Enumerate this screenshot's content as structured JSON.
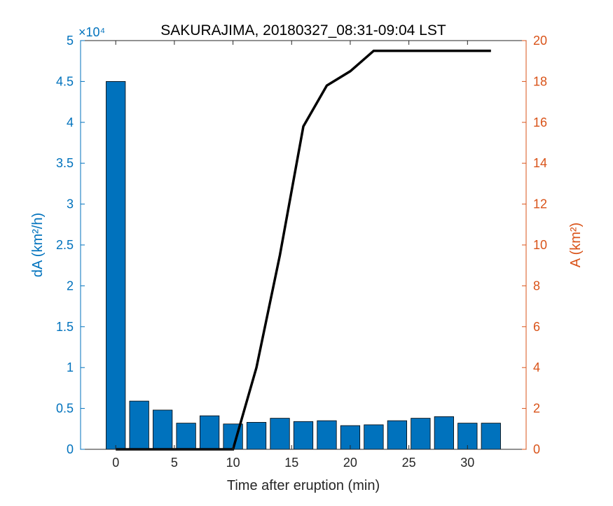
{
  "chart_data": {
    "type": "bar",
    "title": "SAKURAJIMA, 20180327_08:31-09:04 LST",
    "xlabel": "Time after eruption (min)",
    "ylabel_left": "dA (km²/h)",
    "ylabel_right": "A (km²)",
    "xlim": [
      -3,
      35
    ],
    "ylim_left": [
      0,
      50000
    ],
    "ylim_right": [
      0,
      20
    ],
    "left_exponent_label": "×10⁴",
    "x_ticks": [
      "0",
      "5",
      "10",
      "15",
      "20",
      "25",
      "30"
    ],
    "y_left_ticks": [
      "0",
      "0.5",
      "1",
      "1.5",
      "2",
      "2.5",
      "3",
      "3.5",
      "4",
      "4.5",
      "5"
    ],
    "y_right_ticks": [
      "0",
      "2",
      "4",
      "6",
      "8",
      "10",
      "12",
      "14",
      "16",
      "18",
      "20"
    ],
    "bars": {
      "x": [
        0,
        2,
        4,
        6,
        8,
        10,
        12,
        14,
        16,
        18,
        20,
        22,
        24,
        26,
        28,
        30,
        32
      ],
      "values": [
        45000,
        5900,
        4800,
        3200,
        4100,
        3100,
        3300,
        3800,
        3400,
        3500,
        2900,
        3000,
        3500,
        3800,
        4000,
        3200,
        3200
      ],
      "color": "#0072BD"
    },
    "line": {
      "x": [
        0,
        10,
        12,
        14,
        16,
        18,
        20,
        22,
        24,
        26,
        28,
        30,
        32
      ],
      "values": [
        0,
        0,
        4,
        9.5,
        15.8,
        17.8,
        18.5,
        19.5,
        19.5,
        19.5,
        19.5,
        19.5,
        19.5
      ],
      "color": "#000000"
    }
  }
}
